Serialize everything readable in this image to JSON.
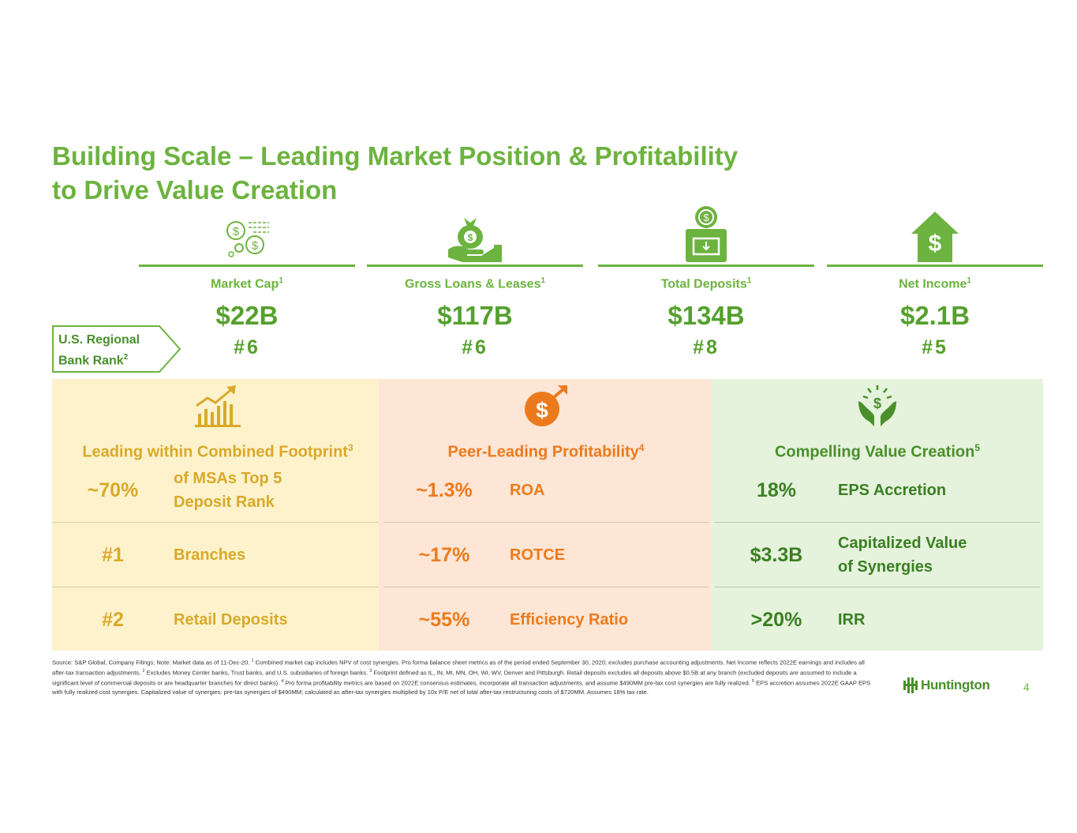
{
  "title": {
    "line1": "Building Scale – Leading Market Position & Profitability",
    "line2": "to Drive Value Creation"
  },
  "metrics": [
    {
      "icon": "money-coins-icon",
      "label": "Market Cap",
      "sup": "1",
      "value": "$22B",
      "rank": "#6"
    },
    {
      "icon": "money-bag-hand-icon",
      "label": "Gross Loans & Leases",
      "sup": "1",
      "value": "$117B",
      "rank": "#6"
    },
    {
      "icon": "deposit-box-icon",
      "label": "Total Deposits",
      "sup": "1",
      "value": "$134B",
      "rank": "#8"
    },
    {
      "icon": "house-dollar-icon",
      "label": "Net Income",
      "sup": "1",
      "value": "$2.1B",
      "rank": "#5"
    }
  ],
  "rank_label": {
    "line1": "U.S. Regional",
    "line2": "Bank Rank",
    "sup": "2"
  },
  "panels": [
    {
      "icon": "growth-chart-icon",
      "title": "Leading within Combined Footprint",
      "sup": "3",
      "color": "#d9a92a",
      "rows": [
        {
          "value": "~70%",
          "desc1": "of MSAs Top 5",
          "desc2": "Deposit Rank"
        },
        {
          "value": "#1",
          "desc1": "Branches",
          "desc2": ""
        },
        {
          "value": "#2",
          "desc1": "Retail Deposits",
          "desc2": ""
        }
      ]
    },
    {
      "icon": "dollar-growth-icon",
      "title": "Peer-Leading Profitability",
      "sup": "4",
      "color": "#ec7a1c",
      "rows": [
        {
          "value": "~1.3%",
          "desc1": "ROA",
          "desc2": ""
        },
        {
          "value": "~17%",
          "desc1": "ROTCE",
          "desc2": ""
        },
        {
          "value": "~55%",
          "desc1": "Efficiency Ratio",
          "desc2": ""
        }
      ]
    },
    {
      "icon": "hands-dollar-icon",
      "title": "Compelling Value Creation",
      "sup": "5",
      "color": "#4a8f2b",
      "rows": [
        {
          "value": "18%",
          "desc1": "EPS Accretion",
          "desc2": ""
        },
        {
          "value": "$3.3B",
          "desc1": "Capitalized Value",
          "desc2": "of Synergies"
        },
        {
          "value": ">20%",
          "desc1": "IRR",
          "desc2": ""
        }
      ]
    }
  ],
  "footnotes": {
    "p1": "Source:  S&P Global, Company Filings;  Note: Market data as of 11-Dec-20. ",
    "s1": "1",
    "p2": " Combined market cap includes NPV of cost synergies. Pro forma balance sheet metrics as of the period ended September 30, 2020; excludes purchase accounting adjustments. Net Income reflects 2022E earnings and includes all after-tax transaction adjustments. ",
    "s2": "2",
    "p3": " Excludes Money Center banks, Trust banks, and U.S. subsidiaries of foreign banks. ",
    "s3": "3",
    "p4": " Footprint defined as IL, IN, MI, MN, OH, WI, WV, Denver and Pittsburgh. Retail deposits excludes all deposits above $0.5B at any branch (excluded deposits are assumed to include a significant level of commercial deposits or are headquarter branches for direct banks).  ",
    "s4": "4",
    "p5": " Pro forma profitability metrics are based on 2022E consensus estimates, incorporate all transaction adjustments, and assume $490MM pre-tax cost synergies are fully realized.  ",
    "s5": "5",
    "p6": " EPS accretion assumes 2022E GAAP EPS with fully realized cost synergies. Capitalized value of synergies: pre-tax synergies of $490MM; calculated as after-tax synergies multiplied by 10x P/E net of total after-tax restructuring costs of $720MM. Assumes 18% tax rate."
  },
  "logo": {
    "text": "Huntington",
    "icon": "huntington-logo-icon"
  },
  "page_number": "4",
  "colors": {
    "green": "#6cb33f",
    "yellow": "#d9a92a",
    "orange": "#ec7a1c",
    "dark_green": "#4a8f2b"
  }
}
